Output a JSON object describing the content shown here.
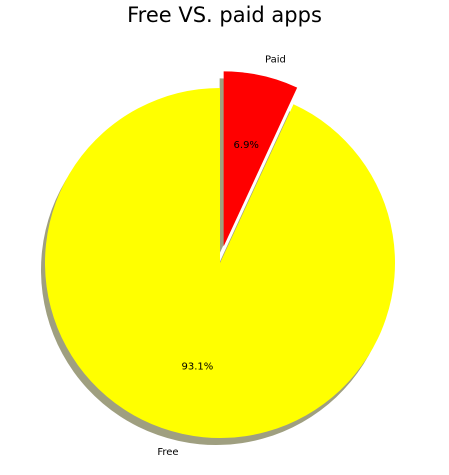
{
  "chart_data": {
    "type": "pie",
    "title": "Free VS. paid apps",
    "slices": [
      {
        "label": "Paid",
        "value": 6.9,
        "pct_label": "6.9%",
        "color": "#ff0000",
        "exploded": true
      },
      {
        "label": "Free",
        "value": 93.1,
        "pct_label": "93.1%",
        "color": "#ffff00",
        "exploded": false
      }
    ],
    "shadow": true,
    "start_angle_deg": 90,
    "direction": "clockwise",
    "legend": "none"
  }
}
